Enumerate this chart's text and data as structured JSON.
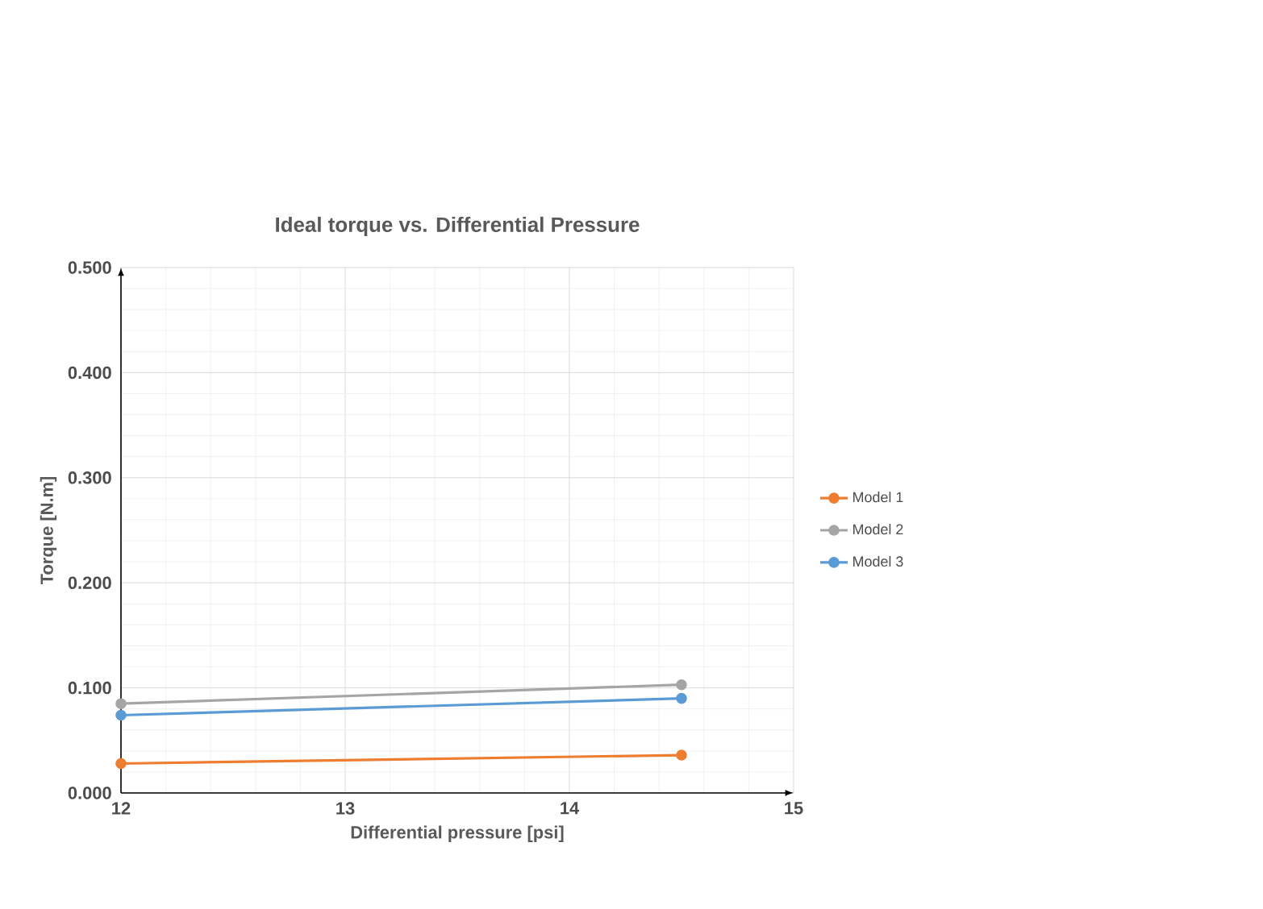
{
  "chart_data": {
    "type": "line",
    "title": "Ideal torque vs. Differential Pressure",
    "xlabel": "Differential pressure [psi]",
    "ylabel": "Torque [N.m]",
    "x": [
      12,
      14.5
    ],
    "series": [
      {
        "name": "Model 1",
        "color": "#ed7d31",
        "values": [
          0.028,
          0.036
        ]
      },
      {
        "name": "Model 2",
        "color": "#a5a5a5",
        "values": [
          0.085,
          0.103
        ]
      },
      {
        "name": "Model 3",
        "color": "#5b9bd5",
        "values": [
          0.074,
          0.09
        ]
      }
    ],
    "xlim": [
      12,
      15
    ],
    "xticks": [
      12,
      13,
      14,
      15
    ],
    "ylim": [
      0,
      0.5
    ],
    "yticks": [
      {
        "value": 0,
        "label": "0.000"
      },
      {
        "value": 0.1,
        "label": "0.100"
      },
      {
        "value": 0.2,
        "label": "0.200"
      },
      {
        "value": 0.3,
        "label": "0.300"
      },
      {
        "value": 0.4,
        "label": "0.400"
      },
      {
        "value": 0.5,
        "label": "0.500"
      }
    ],
    "grid": true,
    "legend": "right",
    "marker": "circle",
    "line_style": "solid"
  }
}
